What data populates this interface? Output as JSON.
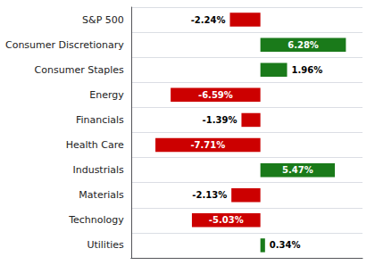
{
  "chart_data": {
    "type": "bar",
    "orientation": "horizontal",
    "categories": [
      "S&P 500",
      "Consumer Discretionary",
      "Consumer Staples",
      "Energy",
      "Financials",
      "Health Care",
      "Industrials",
      "Materials",
      "Technology",
      "Utilities"
    ],
    "values": [
      -2.24,
      6.28,
      1.96,
      -6.59,
      -1.39,
      -7.71,
      5.47,
      -2.13,
      -5.03,
      0.34
    ],
    "value_labels": [
      "-2.24%",
      "6.28%",
      "1.96%",
      "-6.59%",
      "-1.39%",
      "-7.71%",
      "5.47%",
      "-2.13%",
      "-5.03%",
      "0.34%"
    ],
    "data_labels": true,
    "colors": [
      "#cc0000",
      "#1a7a1a",
      "#1a7a1a",
      "#cc0000",
      "#cc0000",
      "#cc0000",
      "#1a7a1a",
      "#cc0000",
      "#cc0000",
      "#1a7a1a"
    ],
    "xlim": [
      -9.5,
      7.5
    ],
    "xticks": [],
    "grid": true,
    "tick_labels": "y"
  }
}
